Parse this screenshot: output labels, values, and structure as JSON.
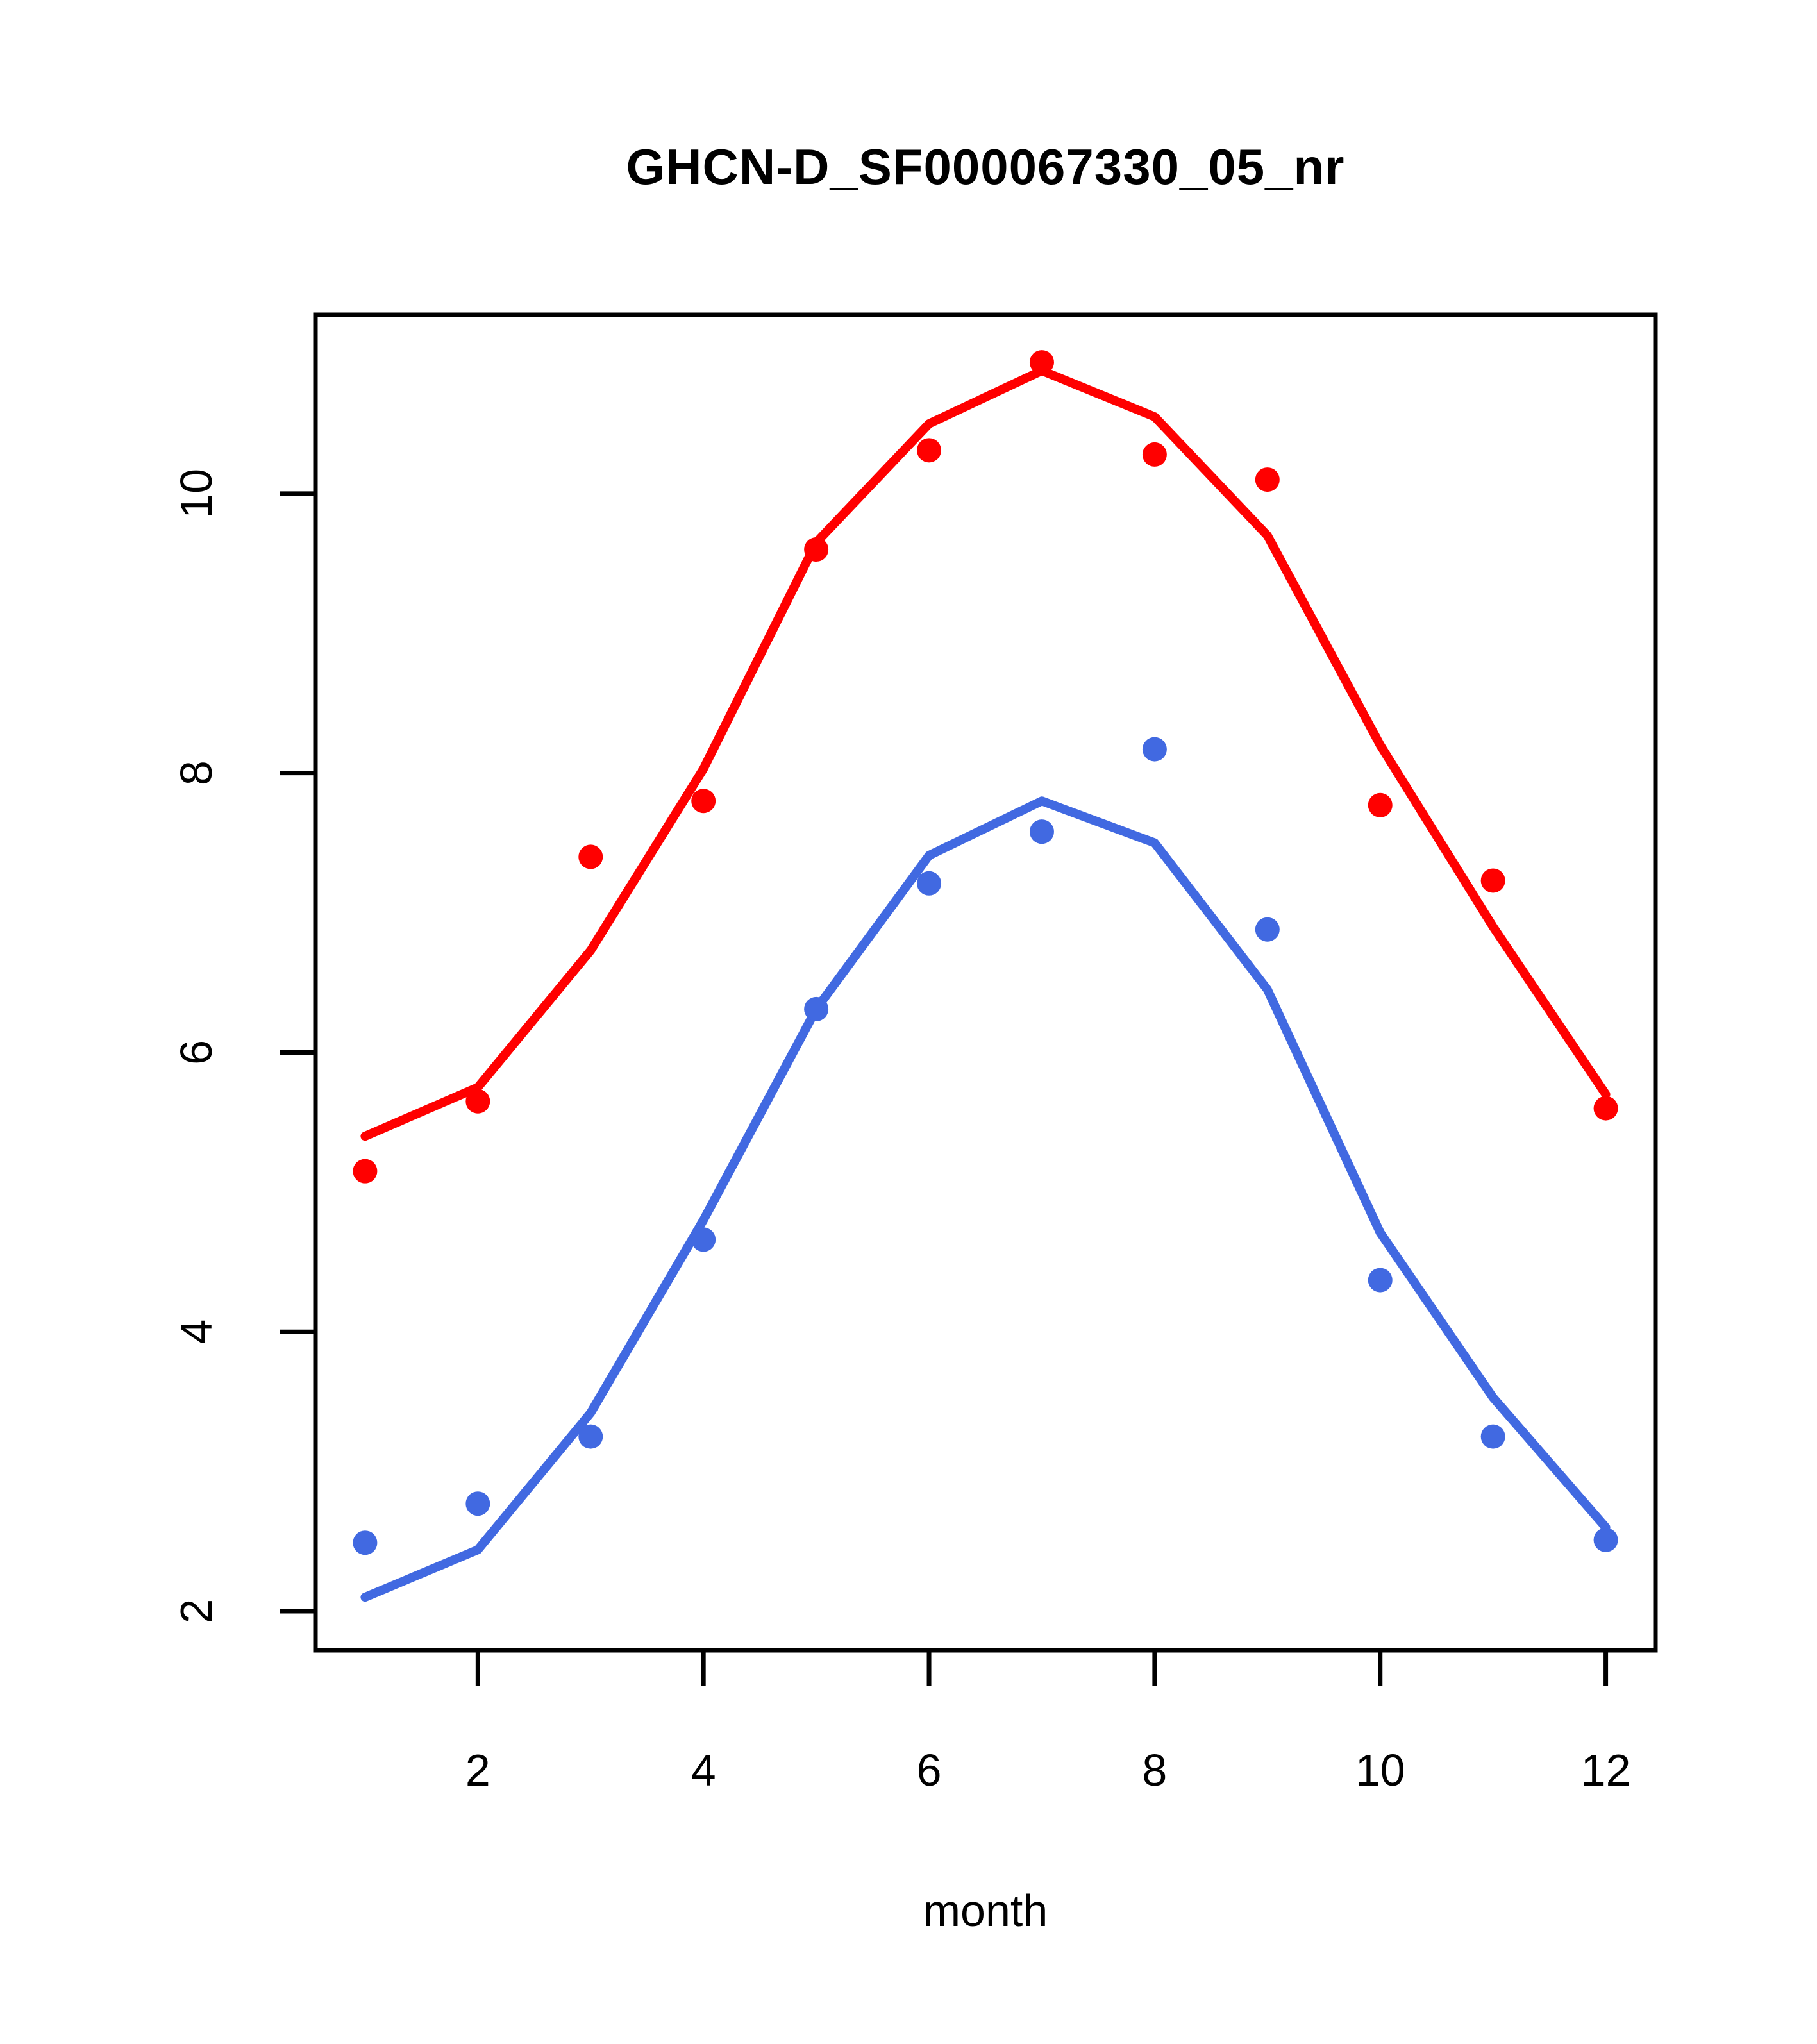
{
  "window": {
    "title": "GHCN-D_SF000067330_05_nr"
  },
  "chart_data": {
    "type": "scatter",
    "title": "GHCN-D_SF000067330_05_nr",
    "xlabel": "month",
    "ylabel": "",
    "x": [
      1,
      2,
      3,
      4,
      5,
      6,
      7,
      8,
      9,
      10,
      11,
      12
    ],
    "x_ticks": [
      2,
      4,
      6,
      8,
      10,
      12
    ],
    "y_ticks": [
      2,
      4,
      6,
      8,
      10
    ],
    "xlim": [
      0.56,
      12.44
    ],
    "ylim": [
      1.72,
      11.28
    ],
    "grid": false,
    "legend": "none",
    "colors": {
      "red": "#FF0000",
      "blue": "#4169E1",
      "axis": "#000000",
      "background": "#FFFFFF"
    },
    "series": [
      {
        "name": "red-observed-points",
        "type": "points",
        "color": "#FF0000",
        "values": [
          5.15,
          5.65,
          7.4,
          7.8,
          9.6,
          10.31,
          10.94,
          10.28,
          10.1,
          7.77,
          7.23,
          5.6
        ]
      },
      {
        "name": "red-fitted-line",
        "type": "line",
        "color": "#FF0000",
        "values": [
          5.4,
          5.75,
          6.73,
          8.03,
          9.65,
          10.5,
          10.88,
          10.55,
          9.7,
          8.2,
          6.9,
          5.7
        ]
      },
      {
        "name": "blue-observed-points",
        "type": "points",
        "color": "#4169E1",
        "values": [
          2.49,
          2.77,
          3.25,
          4.66,
          6.31,
          7.21,
          7.58,
          8.17,
          6.88,
          4.37,
          3.25,
          2.51
        ]
      },
      {
        "name": "blue-fitted-line",
        "type": "line",
        "color": "#4169E1",
        "values": [
          2.1,
          2.44,
          3.42,
          4.8,
          6.31,
          7.41,
          7.8,
          7.5,
          6.45,
          4.71,
          3.53,
          2.6
        ]
      }
    ]
  },
  "layout_meta": {
    "note": "R base graphics style plot, black box frame, outward ticks"
  }
}
